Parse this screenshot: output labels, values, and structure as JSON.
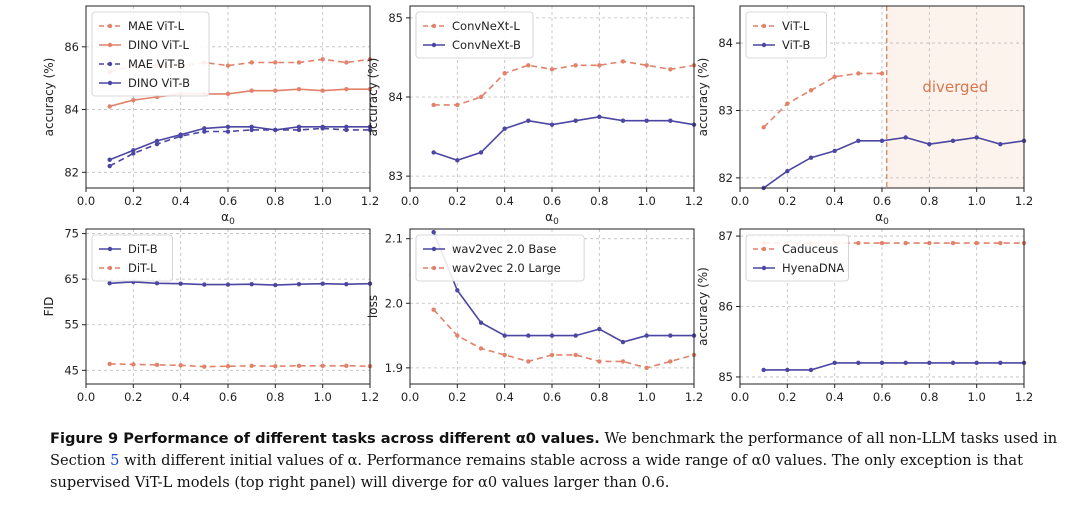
{
  "colors": {
    "orange": "#e2826a",
    "purple": "#4c46a3",
    "grid": "#bdbdbd",
    "diverged_bg": "#fbf3ec",
    "diverged_text": "#d9774f"
  },
  "chart_data": [
    {
      "id": "p1",
      "type": "line",
      "x": [
        0.1,
        0.2,
        0.3,
        0.4,
        0.5,
        0.6,
        0.7,
        0.8,
        0.9,
        1.0,
        1.1,
        1.2
      ],
      "xlim": [
        0,
        1.2
      ],
      "ylim": [
        81.5,
        87.3
      ],
      "xticks": [
        "0.0",
        "0.2",
        "0.4",
        "0.6",
        "0.8",
        "1.0",
        "1.2"
      ],
      "xtick_values": [
        0,
        0.2,
        0.4,
        0.6,
        0.8,
        1.0,
        1.2
      ],
      "yticks": [
        "82",
        "84",
        "86"
      ],
      "ytick_values": [
        82,
        84,
        86
      ],
      "xlabel": "α0",
      "ylabel": "accuracy (%)",
      "legend": "upper-left",
      "series": [
        {
          "name": "MAE ViT-L",
          "style": "dashed",
          "color": "orange",
          "values": [
            85.2,
            85.4,
            85.4,
            85.4,
            85.5,
            85.4,
            85.5,
            85.5,
            85.5,
            85.6,
            85.5,
            85.6
          ]
        },
        {
          "name": "DINO ViT-L",
          "style": "solid",
          "color": "orange",
          "values": [
            84.1,
            84.3,
            84.4,
            84.5,
            84.5,
            84.5,
            84.6,
            84.6,
            84.65,
            84.6,
            84.65,
            84.65
          ]
        },
        {
          "name": "MAE ViT-B",
          "style": "dashed",
          "color": "purple",
          "values": [
            82.2,
            82.6,
            82.9,
            83.15,
            83.3,
            83.3,
            83.35,
            83.35,
            83.35,
            83.4,
            83.35,
            83.35
          ]
        },
        {
          "name": "DINO ViT-B",
          "style": "solid",
          "color": "purple",
          "values": [
            82.4,
            82.7,
            83.0,
            83.2,
            83.4,
            83.45,
            83.45,
            83.35,
            83.45,
            83.45,
            83.45,
            83.45
          ]
        }
      ]
    },
    {
      "id": "p2",
      "type": "line",
      "x": [
        0.1,
        0.2,
        0.3,
        0.4,
        0.5,
        0.6,
        0.7,
        0.8,
        0.9,
        1.0,
        1.1,
        1.2
      ],
      "xlim": [
        0,
        1.2
      ],
      "ylim": [
        82.85,
        85.15
      ],
      "xticks": [
        "0.0",
        "0.2",
        "0.4",
        "0.6",
        "0.8",
        "1.0",
        "1.2"
      ],
      "xtick_values": [
        0,
        0.2,
        0.4,
        0.6,
        0.8,
        1.0,
        1.2
      ],
      "yticks": [
        "83",
        "84",
        "85"
      ],
      "ytick_values": [
        83,
        84,
        85
      ],
      "xlabel": "α0",
      "ylabel": "accuracy (%)",
      "legend": "upper-left",
      "series": [
        {
          "name": "ConvNeXt-L",
          "style": "dashed",
          "color": "orange",
          "values": [
            83.9,
            83.9,
            84.0,
            84.3,
            84.4,
            84.35,
            84.4,
            84.4,
            84.45,
            84.4,
            84.35,
            84.4
          ]
        },
        {
          "name": "ConvNeXt-B",
          "style": "solid",
          "color": "purple",
          "values": [
            83.3,
            83.2,
            83.3,
            83.6,
            83.7,
            83.65,
            83.7,
            83.75,
            83.7,
            83.7,
            83.7,
            83.65
          ]
        }
      ]
    },
    {
      "id": "p3",
      "type": "line",
      "x": [
        0.1,
        0.2,
        0.3,
        0.4,
        0.5,
        0.6,
        0.7,
        0.8,
        0.9,
        1.0,
        1.1,
        1.2
      ],
      "xlim": [
        0,
        1.2
      ],
      "ylim": [
        81.85,
        84.55
      ],
      "xticks": [
        "0.0",
        "0.2",
        "0.4",
        "0.6",
        "0.8",
        "1.0",
        "1.2"
      ],
      "xtick_values": [
        0,
        0.2,
        0.4,
        0.6,
        0.8,
        1.0,
        1.2
      ],
      "yticks": [
        "82",
        "83",
        "84"
      ],
      "ytick_values": [
        82,
        83,
        84
      ],
      "xlabel": "α0",
      "ylabel": "accuracy (%)",
      "legend": "upper-left",
      "diverged_from": 0.62,
      "annotation": "diverged",
      "series": [
        {
          "name": "ViT-L",
          "style": "dashed",
          "color": "orange",
          "x": [
            0.1,
            0.2,
            0.3,
            0.4,
            0.5,
            0.6
          ],
          "values": [
            82.75,
            83.1,
            83.3,
            83.5,
            83.55,
            83.55
          ]
        },
        {
          "name": "ViT-B",
          "style": "solid",
          "color": "purple",
          "values": [
            81.85,
            82.1,
            82.3,
            82.4,
            82.55,
            82.55,
            82.6,
            82.5,
            82.55,
            82.6,
            82.5,
            82.55
          ]
        }
      ]
    },
    {
      "id": "p4",
      "type": "line",
      "x": [
        0.1,
        0.2,
        0.3,
        0.4,
        0.5,
        0.6,
        0.7,
        0.8,
        0.9,
        1.0,
        1.1,
        1.2
      ],
      "xlim": [
        0,
        1.2
      ],
      "ylim": [
        42,
        76
      ],
      "xticks": [
        "0.0",
        "0.2",
        "0.4",
        "0.6",
        "0.8",
        "1.0",
        "1.2"
      ],
      "xtick_values": [
        0,
        0.2,
        0.4,
        0.6,
        0.8,
        1.0,
        1.2
      ],
      "yticks": [
        "45",
        "55",
        "65",
        "75"
      ],
      "ytick_values": [
        45,
        55,
        65,
        75
      ],
      "xlabel": "α0",
      "ylabel": "FID",
      "legend": "upper-left",
      "series": [
        {
          "name": "DiT-B",
          "style": "solid",
          "color": "purple",
          "values": [
            64.1,
            64.4,
            64.1,
            64.0,
            63.8,
            63.8,
            63.9,
            63.7,
            63.9,
            64.0,
            63.9,
            64.0
          ]
        },
        {
          "name": "DiT-L",
          "style": "dashed",
          "color": "orange",
          "values": [
            46.4,
            46.3,
            46.2,
            46.1,
            45.8,
            45.9,
            46.0,
            45.9,
            46.0,
            46.0,
            46.0,
            45.9
          ]
        }
      ]
    },
    {
      "id": "p5",
      "type": "line",
      "x": [
        0.1,
        0.2,
        0.3,
        0.4,
        0.5,
        0.6,
        0.7,
        0.8,
        0.9,
        1.0,
        1.1,
        1.2
      ],
      "xlim": [
        0,
        1.2
      ],
      "ylim": [
        1.875,
        2.115
      ],
      "xticks": [
        "0.0",
        "0.2",
        "0.4",
        "0.6",
        "0.8",
        "1.0",
        "1.2"
      ],
      "xtick_values": [
        0,
        0.2,
        0.4,
        0.6,
        0.8,
        1.0,
        1.2
      ],
      "yticks": [
        "1.9",
        "2.0",
        "2.1"
      ],
      "ytick_values": [
        1.9,
        2.0,
        2.1
      ],
      "xlabel": "α0",
      "ylabel": "loss",
      "legend": "upper-left",
      "series": [
        {
          "name": "wav2vec 2.0 Base",
          "style": "solid",
          "color": "purple",
          "values": [
            2.11,
            2.02,
            1.97,
            1.95,
            1.95,
            1.95,
            1.95,
            1.96,
            1.94,
            1.95,
            1.95,
            1.95
          ]
        },
        {
          "name": "wav2vec 2.0 Large",
          "style": "dashed",
          "color": "orange",
          "values": [
            1.99,
            1.95,
            1.93,
            1.92,
            1.91,
            1.92,
            1.92,
            1.91,
            1.91,
            1.9,
            1.91,
            1.92
          ]
        }
      ]
    },
    {
      "id": "p6",
      "type": "line",
      "x": [
        0.1,
        0.2,
        0.3,
        0.4,
        0.5,
        0.6,
        0.7,
        0.8,
        0.9,
        1.0,
        1.1,
        1.2
      ],
      "xlim": [
        0,
        1.2
      ],
      "ylim": [
        84.9,
        87.1
      ],
      "xticks": [
        "0.0",
        "0.2",
        "0.4",
        "0.6",
        "0.8",
        "1.0",
        "1.2"
      ],
      "xtick_values": [
        0,
        0.2,
        0.4,
        0.6,
        0.8,
        1.0,
        1.2
      ],
      "yticks": [
        "85",
        "86",
        "87"
      ],
      "ytick_values": [
        85,
        86,
        87
      ],
      "xlabel": "α0",
      "ylabel": "accuracy (%)",
      "legend": "upper-left",
      "series": [
        {
          "name": "Caduceus",
          "style": "dashed",
          "color": "orange",
          "values": [
            86.9,
            86.9,
            86.9,
            86.9,
            86.9,
            86.9,
            86.9,
            86.9,
            86.9,
            86.9,
            86.9,
            86.9
          ]
        },
        {
          "name": "HyenaDNA",
          "style": "solid",
          "color": "purple",
          "values": [
            85.1,
            85.1,
            85.1,
            85.2,
            85.2,
            85.2,
            85.2,
            85.2,
            85.2,
            85.2,
            85.2,
            85.2
          ]
        }
      ]
    }
  ],
  "caption": {
    "lead": "Figure 9  Performance of different tasks across different α0 values.",
    "text1": " We benchmark the performance of all non-LLM tasks used in Section ",
    "link": "5",
    "text2": " with different initial values of α. Performance remains stable across a wide range of α0 values. The only exception is that supervised ViT-L models (top right panel) will diverge for α0 values larger than 0.6."
  }
}
